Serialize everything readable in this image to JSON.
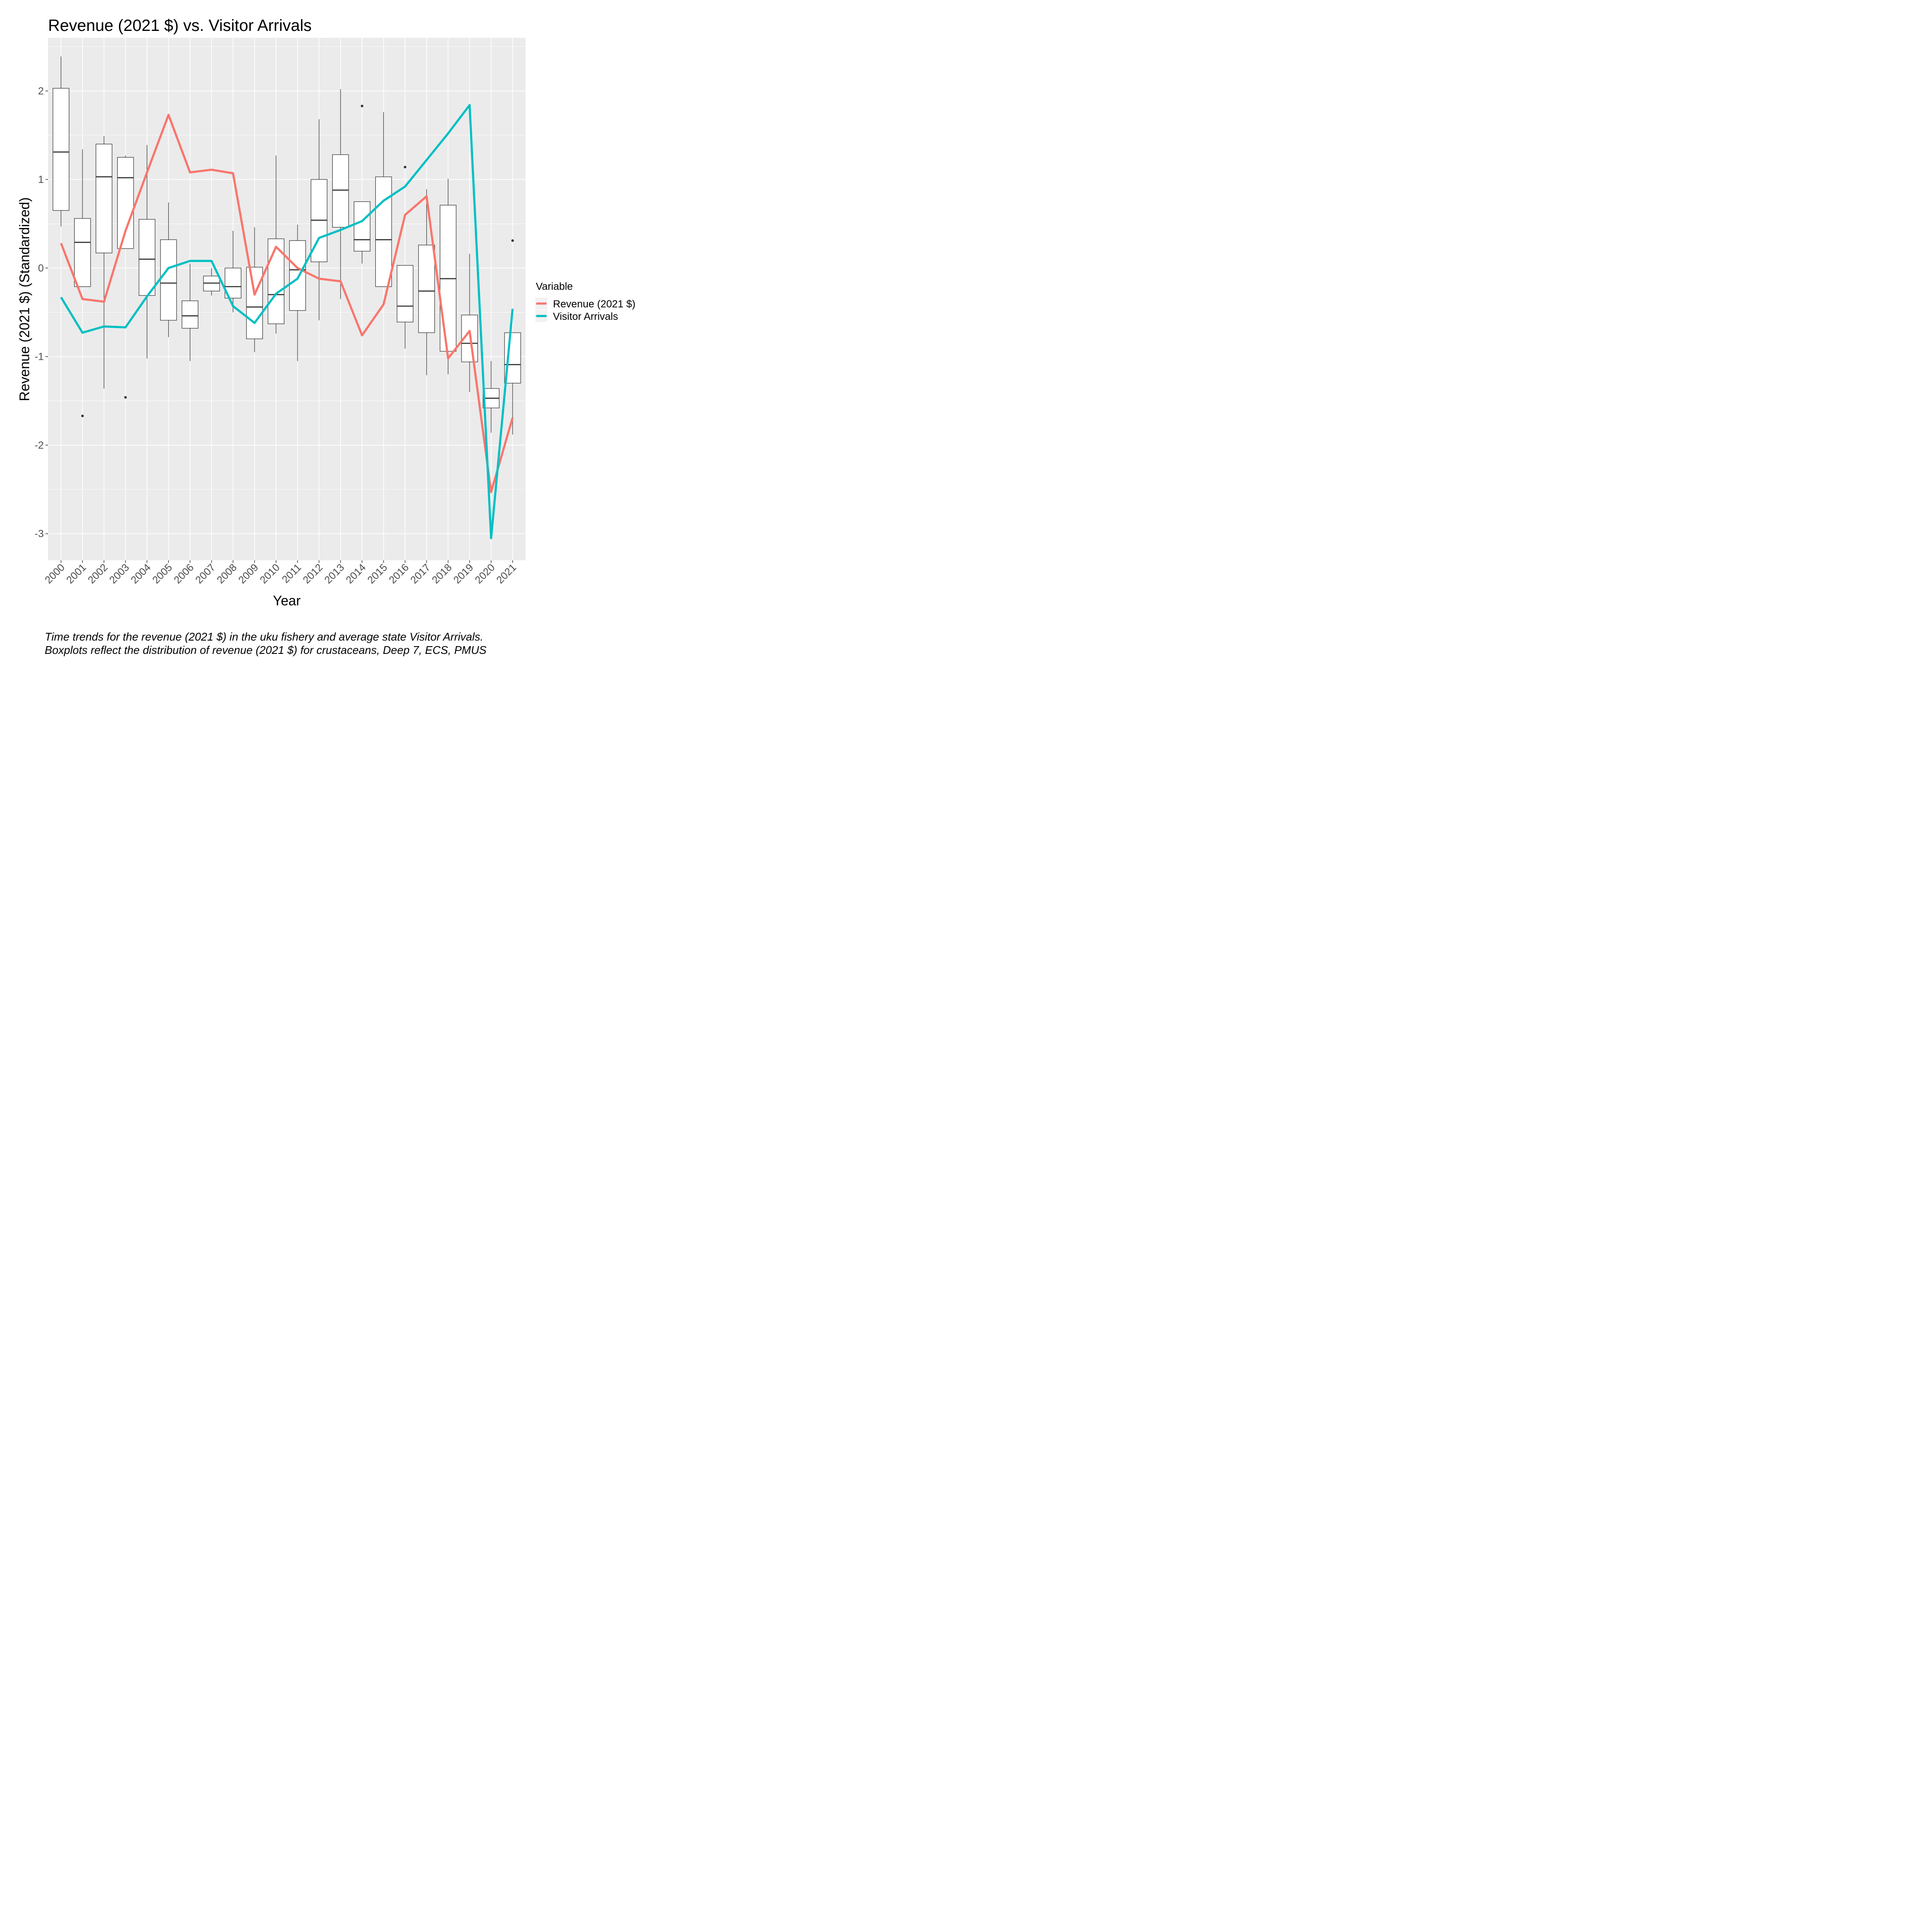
{
  "chart_data": {
    "type": "line",
    "title": "Revenue (2021 $) vs. Visitor Arrivals",
    "xlabel": "Year",
    "ylabel": "Revenue (2021 $) (Standardized)",
    "ylim": [
      -3.3,
      2.6
    ],
    "yticks": [
      -3,
      -2,
      -1,
      0,
      1,
      2
    ],
    "ytick_labels": [
      "-3",
      "-2",
      "-1",
      "0",
      "1",
      "2"
    ],
    "categories": [
      "2000",
      "2001",
      "2002",
      "2003",
      "2004",
      "2005",
      "2006",
      "2007",
      "2008",
      "2009",
      "2010",
      "2011",
      "2012",
      "2013",
      "2014",
      "2015",
      "2016",
      "2017",
      "2018",
      "2019",
      "2020",
      "2021"
    ],
    "legend": {
      "title": "Variable",
      "position": "right"
    },
    "series": [
      {
        "name": "Revenue (2021 $)",
        "color": "#F8766D",
        "values": [
          0.28,
          -0.35,
          -0.38,
          0.42,
          1.08,
          1.73,
          1.08,
          1.11,
          1.07,
          -0.3,
          0.24,
          0.0,
          -0.12,
          -0.15,
          -0.76,
          -0.41,
          0.6,
          0.81,
          -1.02,
          -0.71,
          -2.53,
          -1.69
        ]
      },
      {
        "name": "Visitor Arrivals",
        "color": "#00BFC4",
        "values": [
          -0.33,
          -0.73,
          -0.66,
          -0.67,
          -0.32,
          0.0,
          0.08,
          0.08,
          -0.43,
          -0.62,
          -0.29,
          -0.12,
          0.34,
          0.43,
          0.53,
          0.76,
          0.92,
          1.22,
          1.52,
          1.84,
          -3.05,
          -0.46
        ]
      }
    ],
    "boxplots": [
      {
        "x": "2000",
        "ymin": 0.47,
        "q1": 0.65,
        "median": 1.31,
        "q3": 2.03,
        "ymax": 2.39,
        "outliers": []
      },
      {
        "x": "2001",
        "ymin": -0.21,
        "q1": -0.21,
        "median": 0.29,
        "q3": 0.56,
        "ymax": 1.34,
        "outliers": [
          -1.67
        ]
      },
      {
        "x": "2002",
        "ymin": -1.36,
        "q1": 0.17,
        "median": 1.03,
        "q3": 1.4,
        "ymax": 1.49,
        "outliers": []
      },
      {
        "x": "2003",
        "ymin": 0.22,
        "q1": 0.22,
        "median": 1.02,
        "q3": 1.25,
        "ymax": 1.27,
        "outliers": [
          -1.46
        ]
      },
      {
        "x": "2004",
        "ymin": -1.02,
        "q1": -0.31,
        "median": 0.1,
        "q3": 0.55,
        "ymax": 1.39,
        "outliers": []
      },
      {
        "x": "2005",
        "ymin": -0.78,
        "q1": -0.59,
        "median": -0.17,
        "q3": 0.32,
        "ymax": 0.74,
        "outliers": []
      },
      {
        "x": "2006",
        "ymin": -1.05,
        "q1": -0.68,
        "median": -0.54,
        "q3": -0.37,
        "ymax": 0.05,
        "outliers": []
      },
      {
        "x": "2007",
        "ymin": -0.31,
        "q1": -0.26,
        "median": -0.17,
        "q3": -0.09,
        "ymax": 0.0,
        "outliers": []
      },
      {
        "x": "2008",
        "ymin": -0.5,
        "q1": -0.34,
        "median": -0.21,
        "q3": 0.0,
        "ymax": 0.42,
        "outliers": []
      },
      {
        "x": "2009",
        "ymin": -0.95,
        "q1": -0.8,
        "median": -0.44,
        "q3": 0.01,
        "ymax": 0.46,
        "outliers": []
      },
      {
        "x": "2010",
        "ymin": -0.74,
        "q1": -0.63,
        "median": -0.3,
        "q3": 0.33,
        "ymax": 1.27,
        "outliers": []
      },
      {
        "x": "2011",
        "ymin": -1.05,
        "q1": -0.48,
        "median": -0.02,
        "q3": 0.31,
        "ymax": 0.49,
        "outliers": []
      },
      {
        "x": "2012",
        "ymin": -0.59,
        "q1": 0.07,
        "median": 0.54,
        "q3": 1.0,
        "ymax": 1.68,
        "outliers": []
      },
      {
        "x": "2013",
        "ymin": -0.35,
        "q1": 0.46,
        "median": 0.88,
        "q3": 1.28,
        "ymax": 2.02,
        "outliers": []
      },
      {
        "x": "2014",
        "ymin": 0.05,
        "q1": 0.19,
        "median": 0.32,
        "q3": 0.75,
        "ymax": 0.75,
        "outliers": [
          1.83
        ]
      },
      {
        "x": "2015",
        "ymin": -0.21,
        "q1": -0.21,
        "median": 0.32,
        "q3": 1.03,
        "ymax": 1.76,
        "outliers": []
      },
      {
        "x": "2016",
        "ymin": -0.91,
        "q1": -0.61,
        "median": -0.43,
        "q3": 0.03,
        "ymax": 0.03,
        "outliers": [
          1.14
        ]
      },
      {
        "x": "2017",
        "ymin": -1.21,
        "q1": -0.73,
        "median": -0.26,
        "q3": 0.26,
        "ymax": 0.89,
        "outliers": []
      },
      {
        "x": "2018",
        "ymin": -1.2,
        "q1": -0.94,
        "median": -0.12,
        "q3": 0.71,
        "ymax": 1.01,
        "outliers": []
      },
      {
        "x": "2019",
        "ymin": -1.4,
        "q1": -1.06,
        "median": -0.85,
        "q3": -0.53,
        "ymax": 0.16,
        "outliers": []
      },
      {
        "x": "2020",
        "ymin": -1.86,
        "q1": -1.58,
        "median": -1.47,
        "q3": -1.36,
        "ymax": -1.05,
        "outliers": []
      },
      {
        "x": "2021",
        "ymin": -1.88,
        "q1": -1.3,
        "median": -1.09,
        "q3": -0.73,
        "ymax": -0.73,
        "outliers": [
          0.31
        ]
      }
    ]
  },
  "caption": {
    "line1": "Time trends for the revenue (2021 $) in the uku fishery and average state Visitor Arrivals.",
    "line2": " Boxplots reflect the distribution of revenue (2021 $) for crustaceans, Deep 7, ECS, PMUS"
  }
}
